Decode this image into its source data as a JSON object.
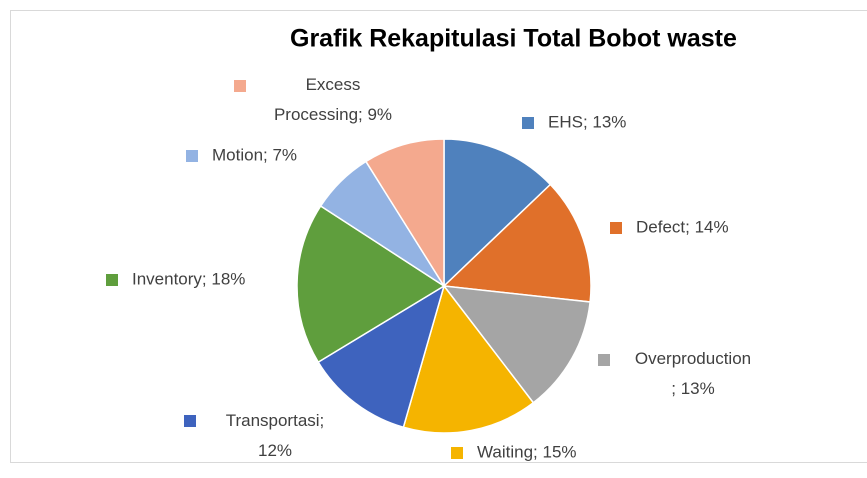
{
  "chart_data": {
    "type": "pie",
    "title": "Grafik Rekapitulasi Total Bobot waste",
    "categories": [
      "EHS",
      "Defect",
      "Overproduction",
      "Waiting",
      "Transportasi",
      "Inventory",
      "Motion",
      "Excess Processing"
    ],
    "values": [
      13,
      14,
      13,
      15,
      12,
      18,
      7,
      9
    ],
    "value_labels": [
      "EHS; 13%",
      "Defect; 14%",
      "Overproduction\n; 13%",
      "Waiting; 15%",
      "Transportasi;\n12%",
      "Inventory; 18%",
      "Motion; 7%",
      "Excess\nProcessing; 9%"
    ],
    "colors": [
      "#4f81bd",
      "#e0702a",
      "#a5a5a5",
      "#f5b400",
      "#3e63be",
      "#5f9e3d",
      "#93b3e3",
      "#f4a98e"
    ]
  }
}
